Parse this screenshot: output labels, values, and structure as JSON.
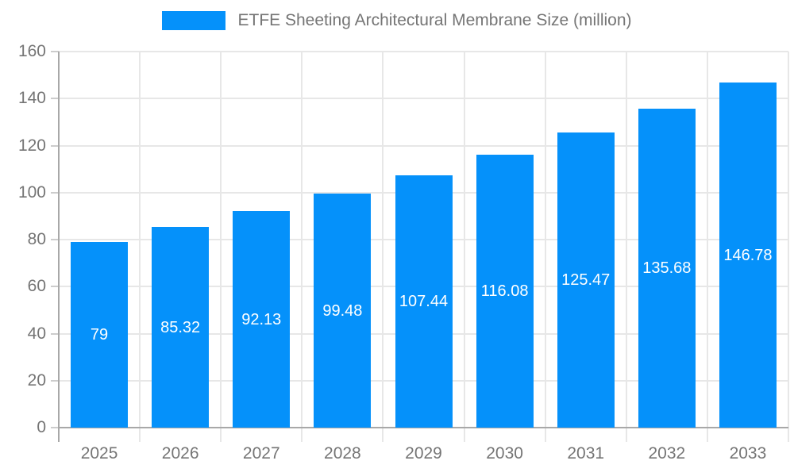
{
  "chart_data": {
    "type": "bar",
    "title": "ETFE Sheeting Architectural Membrane Size (million)",
    "categories": [
      "2025",
      "2026",
      "2027",
      "2028",
      "2029",
      "2030",
      "2031",
      "2032",
      "2033"
    ],
    "values": [
      79,
      85.32,
      92.13,
      99.48,
      107.44,
      116.08,
      125.47,
      135.68,
      146.78
    ],
    "value_labels": [
      "79",
      "85.32",
      "92.13",
      "99.48",
      "107.44",
      "116.08",
      "125.47",
      "135.68",
      "146.78"
    ],
    "xlabel": "",
    "ylabel": "",
    "ylim": [
      0,
      160
    ],
    "yticks": [
      0,
      20,
      40,
      60,
      80,
      100,
      120,
      140,
      160
    ],
    "grid": true,
    "legend_position": "top-center",
    "value_label_position": "inside-center",
    "colors": {
      "bar": "#0591FA",
      "title_text": "#757575",
      "axis_text": "#757575",
      "axis_line": "#a8a8a8",
      "tick_line": "#cccccc",
      "gridline": "#e7e7e7",
      "value_label": "#ffffff",
      "background": "#ffffff"
    }
  }
}
